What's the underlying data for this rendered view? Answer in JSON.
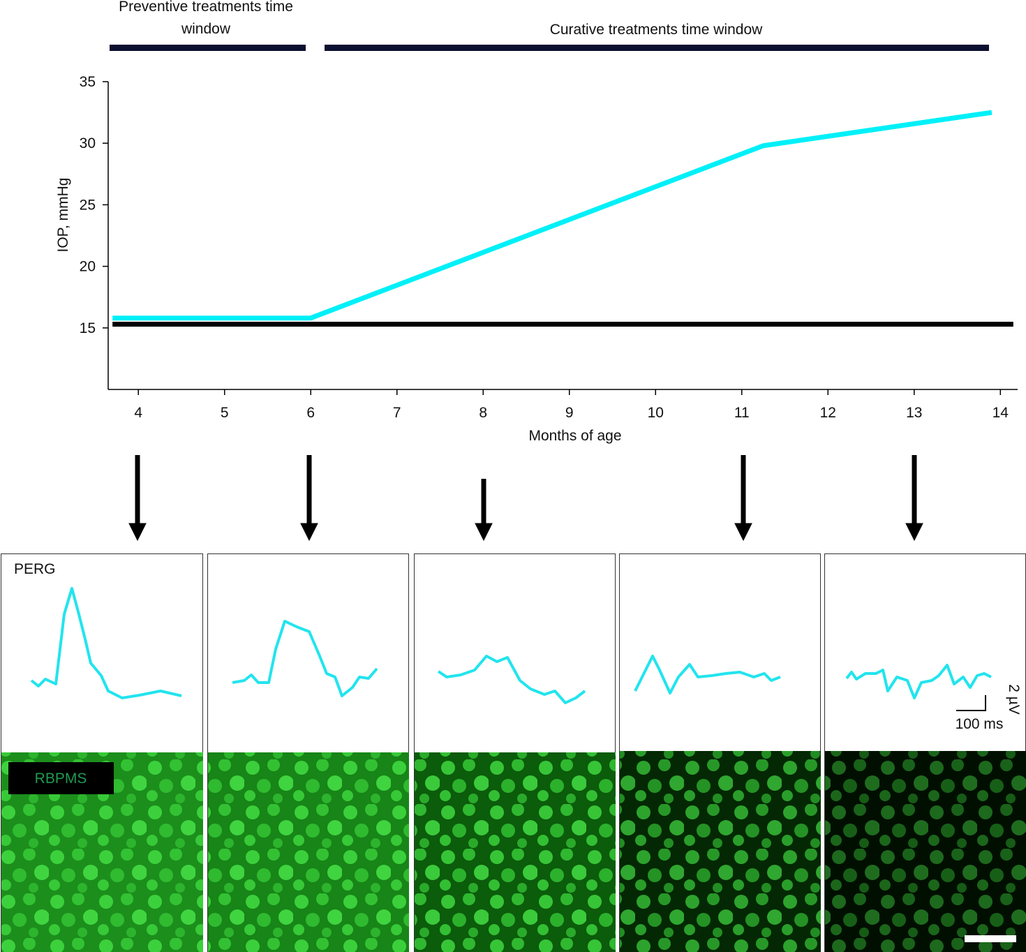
{
  "chart_data": {
    "type": "line",
    "windows": [
      "Preventive treatments time window",
      "Curative treatments time window"
    ],
    "x_label": "Months of age",
    "y_label": "IOP, mmHg",
    "xlim": [
      3.65,
      14.2
    ],
    "ylim": [
      10,
      35
    ],
    "xticks": [
      4,
      5,
      6,
      7,
      8,
      9,
      10,
      11,
      12,
      13,
      14
    ],
    "yticks": [
      15,
      20,
      25,
      30,
      35
    ],
    "series": [
      {
        "color": "#00f0f8",
        "x": [
          3.7,
          6,
          11.25,
          13.9
        ],
        "values": [
          15.8,
          15.8,
          29.8,
          32.5
        ]
      },
      {
        "color": "#000000",
        "x": [
          3.7,
          14.15
        ],
        "values": [
          15.3,
          15.3
        ]
      }
    ]
  },
  "panels": {
    "perg": "PERG",
    "stain": "RBPMS",
    "scale_y": "2 µV",
    "scale_x": "100 ms"
  }
}
